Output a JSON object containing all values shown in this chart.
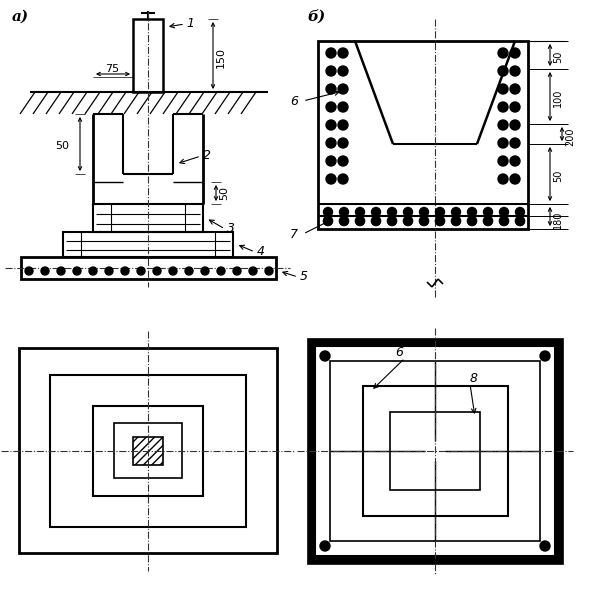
{
  "bg_color": "#ffffff",
  "line_color": "#000000",
  "label_a": "а)",
  "label_b": "б)",
  "dim_75": "75",
  "dim_150": "150",
  "dim_50_left": "50",
  "dim_50_right": "50",
  "dim_50_b1": "50",
  "dim_100_b": "100",
  "dim_200_b": "200",
  "dim_50_b2": "50",
  "dim_180_b": "180",
  "num1": "1",
  "num2": "2",
  "num3": "3",
  "num4": "4",
  "num5": "5",
  "num6": "6",
  "num7": "7",
  "num8": "8"
}
